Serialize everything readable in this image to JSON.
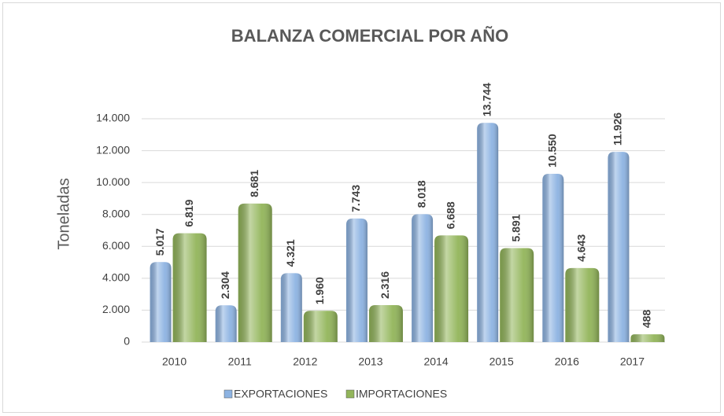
{
  "chart_data": {
    "type": "bar",
    "title": "BALANZA COMERCIAL POR AÑO",
    "y_label": "Toneladas",
    "categories": [
      "2010",
      "2011",
      "2012",
      "2013",
      "2014",
      "2015",
      "2016",
      "2017"
    ],
    "series": [
      {
        "name": "EXPORTACIONES",
        "color": "#8db3e2",
        "values": [
          5017,
          2304,
          4321,
          7743,
          8018,
          13744,
          10550,
          11926
        ],
        "value_labels": [
          "5.017",
          "2.304",
          "4.321",
          "7.743",
          "8.018",
          "13.744",
          "10.550",
          "11.926"
        ]
      },
      {
        "name": "IMPORTACIONES",
        "color": "#92b55a",
        "values": [
          6819,
          8681,
          1960,
          2316,
          6688,
          5891,
          4643,
          488
        ],
        "value_labels": [
          "6.819",
          "8.681",
          "1.960",
          "2.316",
          "6.688",
          "5.891",
          "4.643",
          "488"
        ]
      }
    ],
    "ylim": [
      0,
      14000
    ],
    "yticks": [
      0,
      {
        "value": 2000,
        "label": "2.000"
      },
      {
        "value": 4000,
        "label": "4.000"
      },
      {
        "value": 6000,
        "label": "6.000"
      },
      {
        "value": 8000,
        "label": "8.000"
      },
      {
        "value": 10000,
        "label": "10.000"
      },
      {
        "value": 12000,
        "label": "12.000"
      },
      {
        "value": 14000,
        "label": "14.000"
      }
    ],
    "grid": true,
    "legend": "bottom"
  }
}
